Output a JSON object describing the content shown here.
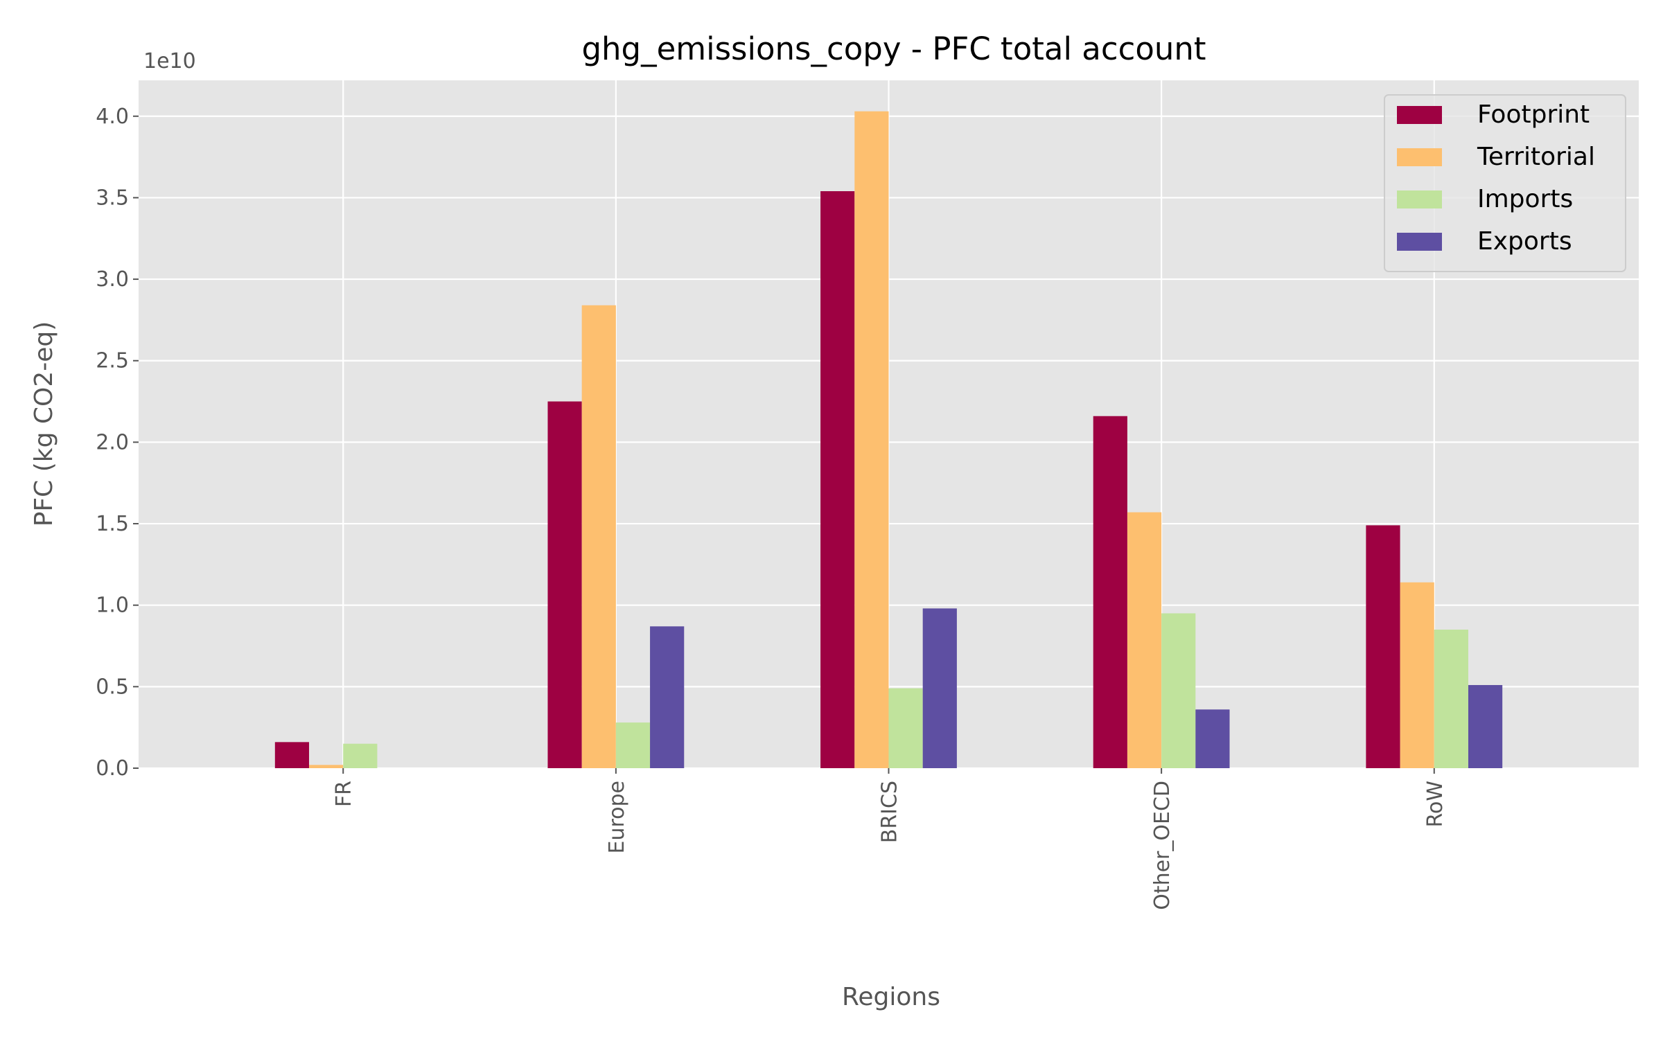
{
  "chart_data": {
    "type": "bar",
    "title": "ghg_emissions_copy - PFC total account",
    "xlabel": "Regions",
    "ylabel": "PFC (kg CO2-eq)",
    "y_offset_label": "1e10",
    "y_scale": 10000000000,
    "ylim": [
      0,
      4.22
    ],
    "yticks": [
      0.0,
      0.5,
      1.0,
      1.5,
      2.0,
      2.5,
      3.0,
      3.5,
      4.0
    ],
    "ytick_labels": [
      "0.0",
      "0.5",
      "1.0",
      "1.5",
      "2.0",
      "2.5",
      "3.0",
      "3.5",
      "4.0"
    ],
    "categories": [
      "FR",
      "Europe",
      "BRICS",
      "Other_OECD",
      "RoW"
    ],
    "grid": true,
    "legend_position": "top-right",
    "series": [
      {
        "name": "Footprint",
        "color": "#9e0142",
        "values": [
          0.16,
          2.25,
          3.54,
          2.16,
          1.49
        ]
      },
      {
        "name": "Territorial",
        "color": "#fdbf6f",
        "values": [
          0.02,
          2.84,
          4.03,
          1.57,
          1.14
        ]
      },
      {
        "name": "Imports",
        "color": "#c0e39c",
        "values": [
          0.15,
          0.28,
          0.49,
          0.95,
          0.85
        ]
      },
      {
        "name": "Exports",
        "color": "#5e4fa2",
        "values": [
          0.0,
          0.87,
          0.98,
          0.36,
          0.51
        ]
      }
    ]
  }
}
